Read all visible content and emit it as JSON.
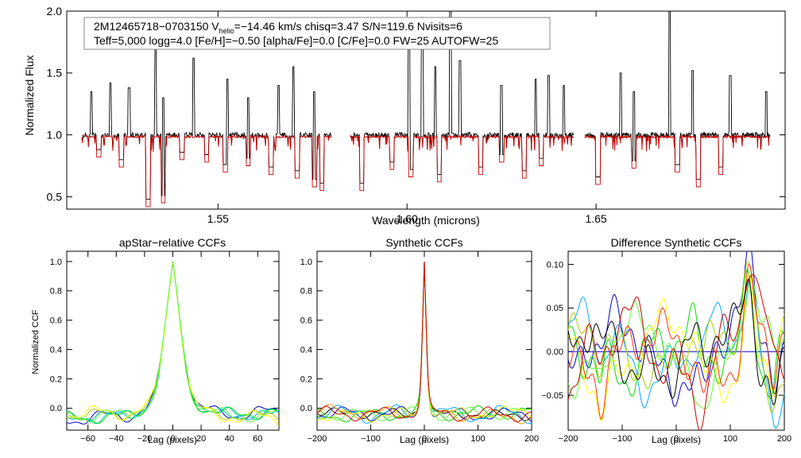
{
  "colors": {
    "observed": "#000000",
    "model": "#cc0000",
    "axes": "#000000",
    "zero_line": "#0000cc",
    "ccf_palette": [
      "#0000cc",
      "#00aaff",
      "#00cccc",
      "#00dd00",
      "#66ff33",
      "#aacc00",
      "#ffff00",
      "#ff9900",
      "#ff3300",
      "#cc0000",
      "#000000"
    ]
  },
  "chart_data": [
    {
      "type": "line",
      "id": "spectrum",
      "title": "",
      "xlabel": "Wavelength (microns)",
      "ylabel": "Normalized Flux",
      "xlim": [
        1.51,
        1.7
      ],
      "ylim": [
        0.4,
        2.0
      ],
      "xticks": [
        1.55,
        1.6,
        1.65
      ],
      "xtick_labels": [
        "1.55",
        "1.60",
        "1.65"
      ],
      "yticks": [
        0.5,
        1.0,
        1.5,
        2.0
      ],
      "ytick_labels": [
        "0.5",
        "1.0",
        "1.5",
        "2.0"
      ],
      "chips": [
        [
          1.514,
          1.58
        ],
        [
          1.585,
          1.644
        ],
        [
          1.647,
          1.696
        ]
      ],
      "emission_lines": [
        [
          1.5165,
          1.35
        ],
        [
          1.5215,
          1.42
        ],
        [
          1.5265,
          1.38
        ],
        [
          1.5335,
          1.72
        ],
        [
          1.5355,
          1.3
        ],
        [
          1.5435,
          1.62
        ],
        [
          1.5525,
          1.45
        ],
        [
          1.558,
          1.3
        ],
        [
          1.566,
          1.4
        ],
        [
          1.57,
          1.55
        ],
        [
          1.5755,
          1.35
        ],
        [
          1.6005,
          1.7
        ],
        [
          1.604,
          1.95
        ],
        [
          1.6075,
          1.55
        ],
        [
          1.6115,
          2.0
        ],
        [
          1.614,
          1.6
        ],
        [
          1.625,
          1.4
        ],
        [
          1.634,
          1.45
        ],
        [
          1.6375,
          1.48
        ],
        [
          1.6415,
          1.4
        ],
        [
          1.6565,
          1.5
        ],
        [
          1.66,
          1.35
        ],
        [
          1.6695,
          2.0
        ],
        [
          1.6755,
          1.52
        ],
        [
          1.6855,
          1.48
        ],
        [
          1.695,
          1.35
        ]
      ],
      "absorption_lines": [
        [
          1.5185,
          0.82
        ],
        [
          1.5245,
          0.74
        ],
        [
          1.5315,
          0.42
        ],
        [
          1.5355,
          0.45
        ],
        [
          1.5405,
          0.8
        ],
        [
          1.547,
          0.78
        ],
        [
          1.552,
          0.7
        ],
        [
          1.558,
          0.75
        ],
        [
          1.564,
          0.68
        ],
        [
          1.571,
          0.65
        ],
        [
          1.5755,
          0.58
        ],
        [
          1.5775,
          0.55
        ],
        [
          1.588,
          0.55
        ],
        [
          1.596,
          0.72
        ],
        [
          1.601,
          0.66
        ],
        [
          1.6085,
          0.62
        ],
        [
          1.6195,
          0.68
        ],
        [
          1.625,
          0.78
        ],
        [
          1.631,
          0.65
        ],
        [
          1.6355,
          0.75
        ],
        [
          1.6505,
          0.6
        ],
        [
          1.66,
          0.73
        ],
        [
          1.6715,
          0.7
        ],
        [
          1.677,
          0.58
        ],
        [
          1.683,
          0.68
        ]
      ],
      "annotation": {
        "line1_prefix": "2M12465718−0703150  V",
        "line1_sub": "helio",
        "line1_suffix": "=−14.46 km/s  chisq=3.47  S/N=119.6  Nvisits=6",
        "line2": "Teff=5,000 logg=4.0 [Fe/H]=−0.50 [alpha/Fe]=0.0 [C/Fe]=0.0 FW=25 AUTOFW=25"
      }
    },
    {
      "type": "line",
      "id": "apstar_ccf",
      "title": "apStar−relative CCFs",
      "xlabel": "Lag (pixels)",
      "ylabel": "Normalized CCF",
      "xlim": [
        -75,
        75
      ],
      "ylim": [
        -0.15,
        1.07
      ],
      "xticks": [
        -60,
        -40,
        -20,
        0,
        20,
        40,
        60
      ],
      "xtick_labels": [
        "−60",
        "−40",
        "−20",
        "0",
        "20",
        "40",
        "60"
      ],
      "yticks": [
        0.0,
        0.2,
        0.4,
        0.6,
        0.8,
        1.0
      ],
      "ytick_labels": [
        "0.0",
        "0.2",
        "0.4",
        "0.6",
        "0.8",
        "1.0"
      ],
      "curve_width": 8,
      "curve_floor": -0.05,
      "n_curves": 7
    },
    {
      "type": "line",
      "id": "synthetic_ccf",
      "title": "Synthetic CCFs",
      "xlabel": "Lag (pixels)",
      "ylabel": "",
      "xlim": [
        -200,
        200
      ],
      "ylim": [
        -0.15,
        1.07
      ],
      "xticks": [
        -200,
        -100,
        0,
        100,
        200
      ],
      "xtick_labels": [
        "−200",
        "−100",
        "0",
        "100",
        "200"
      ],
      "yticks": [
        0.0,
        0.2,
        0.4,
        0.6,
        0.8,
        1.0
      ],
      "ytick_labels": [
        "0.0",
        "0.2",
        "0.4",
        "0.6",
        "0.8",
        "1.0"
      ],
      "curve_width": 5,
      "curve_floor": -0.04,
      "n_curves": 8
    },
    {
      "type": "line",
      "id": "difference_ccf",
      "title": "Difference Synthetic CCFs",
      "xlabel": "Lag (pixels)",
      "ylabel": "",
      "xlim": [
        -200,
        200
      ],
      "ylim": [
        -0.09,
        0.115
      ],
      "xticks": [
        -200,
        -100,
        0,
        100,
        200
      ],
      "xtick_labels": [
        "−200",
        "−100",
        "0",
        "100",
        "200"
      ],
      "yticks": [
        -0.05,
        0.0,
        0.05,
        0.1
      ],
      "ytick_labels": [
        "−0.05",
        "0.00",
        "0.05",
        "0.10"
      ],
      "baseline": 0.0,
      "peak": [
        135,
        0.1
      ],
      "n_curves": 9
    }
  ]
}
